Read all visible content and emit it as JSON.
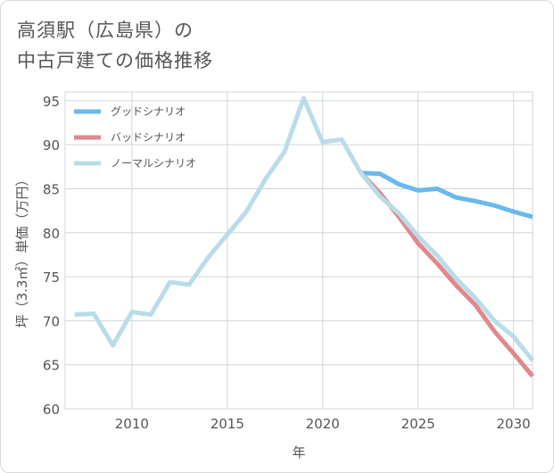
{
  "chart_data": {
    "type": "line",
    "title": "高須駅（広島県）の\n中古戸建ての価格推移",
    "xlabel": "年",
    "ylabel": "坪（3.3㎡）単価（万円）",
    "xlim": [
      2006.5,
      2031
    ],
    "ylim": [
      60,
      96
    ],
    "xticks": [
      2010,
      2015,
      2020,
      2025,
      2030
    ],
    "yticks": [
      60,
      65,
      70,
      75,
      80,
      85,
      90,
      95
    ],
    "grid": true,
    "legend_position": "top-left",
    "series": [
      {
        "name": "グッドシナリオ",
        "color": "#6ab8ec",
        "x": [
          2022,
          2023,
          2024,
          2025,
          2026,
          2027,
          2028,
          2029,
          2030,
          2031
        ],
        "values": [
          86.8,
          86.7,
          85.5,
          84.8,
          85.0,
          84.0,
          83.6,
          83.1,
          82.4,
          81.8
        ]
      },
      {
        "name": "バッドシナリオ",
        "color": "#e0888e",
        "x": [
          2022,
          2023,
          2024,
          2025,
          2026,
          2027,
          2028,
          2029,
          2030,
          2031
        ],
        "values": [
          86.8,
          84.5,
          81.8,
          78.8,
          76.5,
          74.0,
          71.8,
          68.8,
          66.3,
          63.7
        ]
      },
      {
        "name": "ノーマルシナリオ",
        "color": "#badce9",
        "x": [
          2007,
          2008,
          2009,
          2010,
          2011,
          2012,
          2013,
          2014,
          2015,
          2016,
          2017,
          2018,
          2019,
          2020,
          2021,
          2022,
          2023,
          2024,
          2025,
          2026,
          2027,
          2028,
          2029,
          2030,
          2031
        ],
        "values": [
          70.7,
          70.8,
          67.2,
          71.0,
          70.7,
          74.4,
          74.1,
          77.2,
          79.8,
          82.4,
          86.1,
          89.2,
          95.3,
          90.3,
          90.6,
          86.8,
          84.1,
          82.2,
          79.6,
          77.4,
          74.8,
          72.6,
          70.0,
          68.2,
          65.5
        ]
      }
    ]
  }
}
